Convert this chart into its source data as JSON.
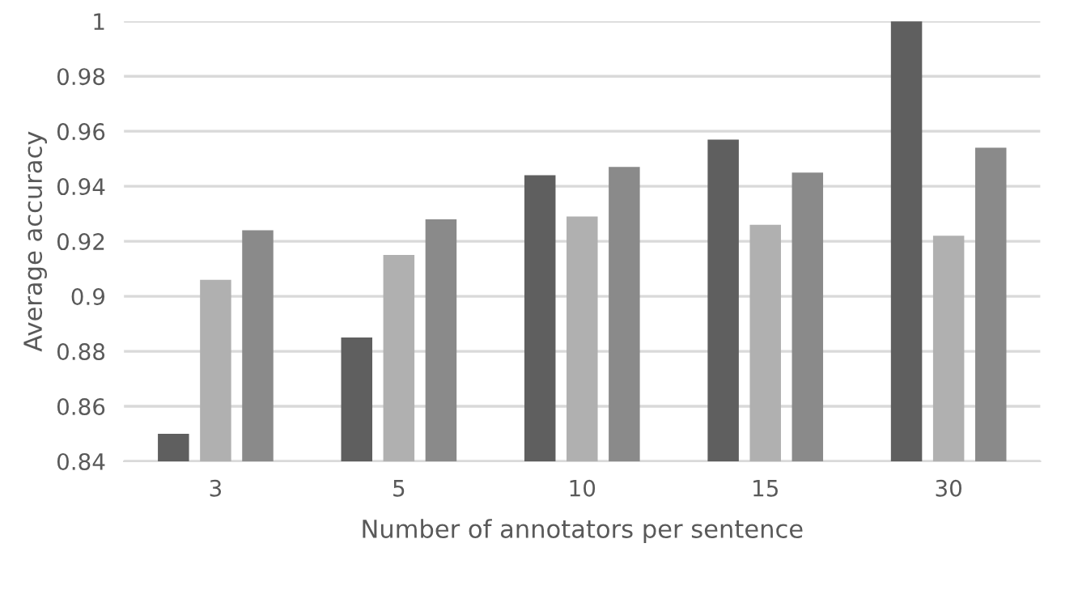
{
  "chart_data": {
    "type": "bar",
    "xlabel": "Number of annotators per sentence",
    "ylabel": "Average accuracy",
    "categories": [
      "3",
      "5",
      "10",
      "15",
      "30"
    ],
    "series": [
      {
        "color": "#5f5f5f",
        "values": [
          0.85,
          0.885,
          0.944,
          0.957,
          1.0
        ]
      },
      {
        "color": "#b0b0b0",
        "values": [
          0.906,
          0.915,
          0.929,
          0.926,
          0.922
        ]
      },
      {
        "color": "#8a8a8a",
        "values": [
          0.924,
          0.928,
          0.947,
          0.945,
          0.954
        ]
      }
    ],
    "ylim": [
      0.84,
      1
    ],
    "yticks": [
      0.84,
      0.86,
      0.88,
      0.9,
      0.92,
      0.94,
      0.96,
      0.98,
      1
    ],
    "grid": "y",
    "legend": false
  }
}
